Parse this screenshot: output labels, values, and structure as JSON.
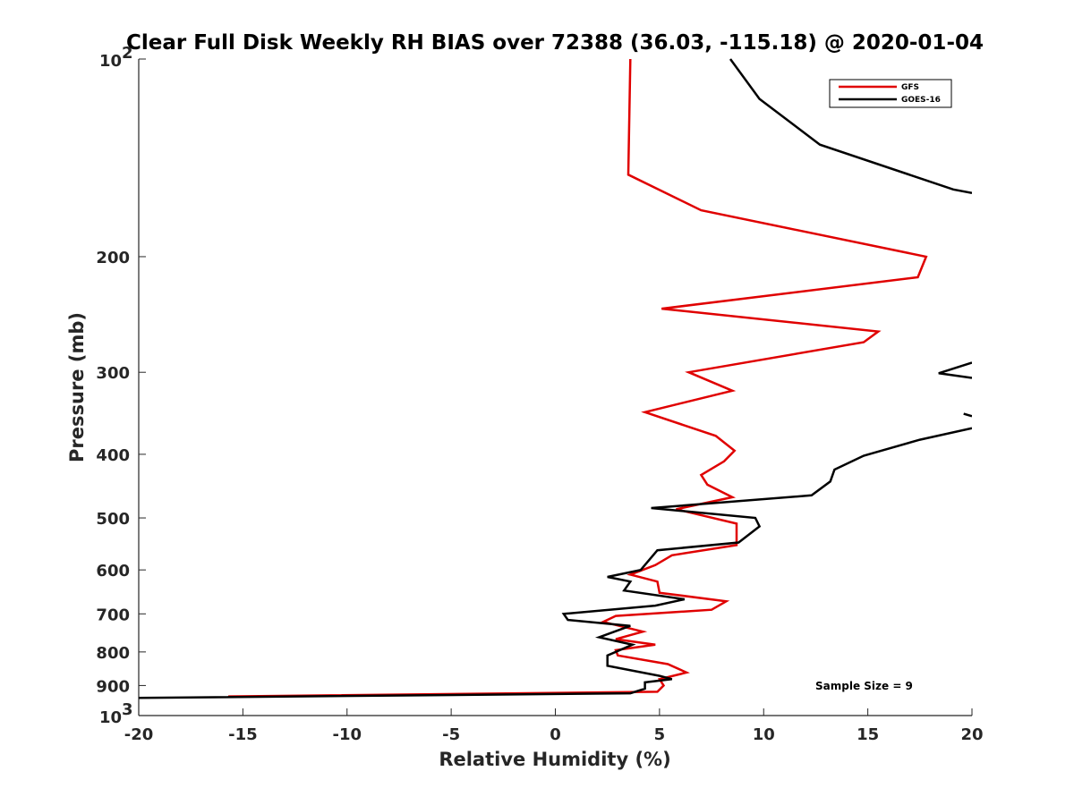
{
  "chart_data": {
    "type": "line",
    "title": "Clear Full Disk Weekly RH BIAS over 72388 (36.03, -115.18) @ 2020-01-04",
    "xlabel": "Relative Humidity (%)",
    "ylabel": "Pressure (mb)",
    "xlim": [
      -20,
      20
    ],
    "ylim": [
      100,
      1000
    ],
    "y_scale": "log",
    "y_reversed": true,
    "grid": false,
    "legend_position": "top-right",
    "x_ticks": [
      "-20",
      "-15",
      "-10",
      "-5",
      "0",
      "5",
      "10",
      "15",
      "20"
    ],
    "y_ticks": [
      {
        "value": 100,
        "base": "10",
        "exp": "2"
      },
      {
        "value": 200,
        "label": "200"
      },
      {
        "value": 300,
        "label": "300"
      },
      {
        "value": 400,
        "label": "400"
      },
      {
        "value": 500,
        "label": "500"
      },
      {
        "value": 600,
        "label": "600"
      },
      {
        "value": 700,
        "label": "700"
      },
      {
        "value": 800,
        "label": "800"
      },
      {
        "value": 900,
        "label": "900"
      },
      {
        "value": 1000,
        "base": "10",
        "exp": "3"
      }
    ],
    "series": [
      {
        "name": "GFS",
        "color": "#e00000",
        "points": [
          [
            3.6,
            100
          ],
          [
            3.5,
            150
          ],
          [
            7.0,
            170
          ],
          [
            17.8,
            200
          ],
          [
            17.4,
            215
          ],
          [
            5.1,
            240
          ],
          [
            15.5,
            260
          ],
          [
            14.8,
            270
          ],
          [
            6.4,
            300
          ],
          [
            8.5,
            320
          ],
          [
            4.3,
            345
          ],
          [
            7.7,
            375
          ],
          [
            8.6,
            395
          ],
          [
            8.1,
            410
          ],
          [
            7.0,
            430
          ],
          [
            7.3,
            445
          ],
          [
            8.5,
            465
          ],
          [
            5.8,
            485
          ],
          [
            8.7,
            510
          ],
          [
            8.7,
            550
          ],
          [
            5.6,
            570
          ],
          [
            4.8,
            590
          ],
          [
            3.6,
            610
          ],
          [
            4.9,
            625
          ],
          [
            5.0,
            650
          ],
          [
            8.2,
            670
          ],
          [
            7.5,
            690
          ],
          [
            2.9,
            705
          ],
          [
            2.3,
            720
          ],
          [
            4.2,
            745
          ],
          [
            2.9,
            765
          ],
          [
            4.8,
            780
          ],
          [
            2.9,
            795
          ],
          [
            3.0,
            810
          ],
          [
            5.4,
            835
          ],
          [
            6.3,
            860
          ],
          [
            5.0,
            880
          ],
          [
            5.2,
            900
          ],
          [
            4.9,
            920
          ],
          [
            -15.7,
            935
          ]
        ]
      },
      {
        "name": "GOES-16",
        "color": "#000000",
        "segments": [
          [
            [
              8.4,
              100
            ],
            [
              9.8,
              115
            ],
            [
              12.7,
              135
            ],
            [
              19.1,
              158
            ],
            [
              20.0,
              160
            ]
          ],
          [
            [
              20.0,
              290
            ],
            [
              18.4,
              301
            ],
            [
              20.0,
              306
            ]
          ],
          [
            [
              19.6,
              347
            ],
            [
              20.0,
              350
            ]
          ],
          [
            [
              20.0,
              365
            ],
            [
              17.5,
              380
            ],
            [
              14.8,
              402
            ],
            [
              13.4,
              422
            ],
            [
              13.2,
              440
            ],
            [
              12.3,
              462
            ],
            [
              4.6,
              483
            ],
            [
              9.6,
              500
            ],
            [
              9.8,
              515
            ],
            [
              8.8,
              545
            ],
            [
              4.9,
              560
            ],
            [
              4.1,
              600
            ],
            [
              2.5,
              615
            ],
            [
              3.6,
              625
            ],
            [
              3.3,
              645
            ],
            [
              6.2,
              665
            ],
            [
              4.8,
              680
            ],
            [
              0.4,
              700
            ],
            [
              0.6,
              715
            ],
            [
              3.6,
              730
            ],
            [
              2.1,
              760
            ],
            [
              3.7,
              780
            ],
            [
              2.5,
              810
            ],
            [
              2.5,
              840
            ],
            [
              5.0,
              870
            ],
            [
              5.6,
              880
            ],
            [
              4.3,
              890
            ],
            [
              4.3,
              910
            ],
            [
              3.6,
              925
            ],
            [
              -20.0,
              940
            ]
          ]
        ]
      }
    ],
    "annotations": [
      {
        "text": "Sample Size = 9"
      }
    ]
  }
}
